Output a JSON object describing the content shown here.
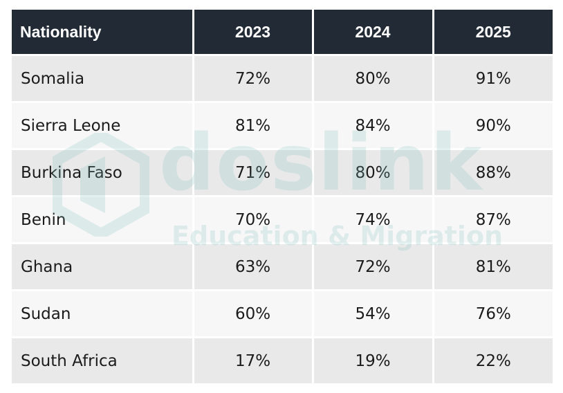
{
  "chart_data": {
    "type": "table",
    "columns": [
      "Nationality",
      "2023",
      "2024",
      "2025"
    ],
    "rows": [
      [
        "Somalia",
        "72%",
        "80%",
        "91%"
      ],
      [
        "Sierra Leone",
        "81%",
        "84%",
        "90%"
      ],
      [
        "Burkina Faso",
        "71%",
        "80%",
        "88%"
      ],
      [
        "Benin",
        "70%",
        "74%",
        "87%"
      ],
      [
        "Ghana",
        "63%",
        "72%",
        "81%"
      ],
      [
        "Sudan",
        "60%",
        "54%",
        "76%"
      ],
      [
        "South Africa",
        "17%",
        "19%",
        "22%"
      ]
    ]
  },
  "watermark": {
    "brand": "doslink",
    "tagline": "Education & Migration",
    "icon": "doslink-logo-icon"
  },
  "colors": {
    "header_bg": "#222b35",
    "header_text": "#ffffff",
    "row_odd": "#e9e9e9",
    "row_even": "#f7f7f7",
    "watermark": "#7fc4bd"
  }
}
